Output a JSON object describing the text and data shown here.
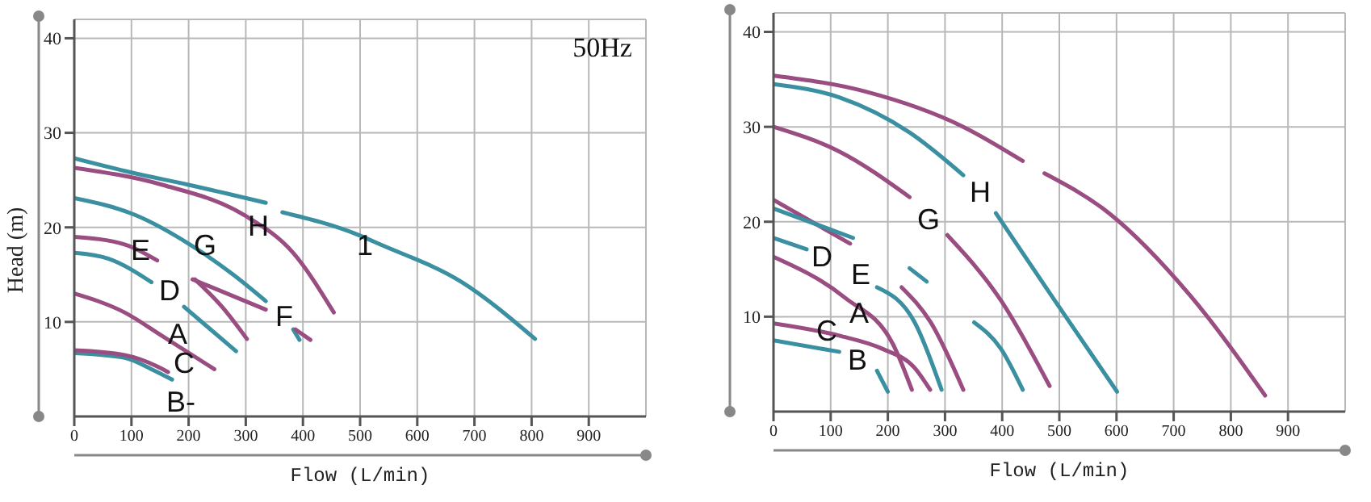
{
  "chart_data": [
    {
      "type": "line",
      "xlabel": "Flow (L/min)",
      "ylabel": "Head (m)",
      "xlim": [
        0,
        1000
      ],
      "ylim": [
        0,
        42
      ],
      "xticks": [
        0,
        100,
        200,
        300,
        400,
        500,
        600,
        700,
        800,
        900
      ],
      "yticks": [
        10,
        20,
        30,
        40
      ],
      "grid": true,
      "series": [
        {
          "color": "#3a8fa0",
          "x": [
            0,
            100,
            200,
            335,
            350,
            364,
            497,
            535,
            678,
            806
          ],
          "values": [
            27.3,
            25.8,
            24.5,
            22.6,
            null,
            21.6,
            19.2,
            18.2,
            14.2,
            8.2
          ]
        },
        {
          "color": "#9a4d80",
          "x": [
            0,
            154,
            297,
            383,
            454
          ],
          "values": [
            26.3,
            24.5,
            21.3,
            17.3,
            11.0
          ]
        },
        {
          "color": "#3a8fa0",
          "x": [
            0,
            107,
            202,
            278,
            335,
            360,
            383,
            394
          ],
          "values": [
            23.1,
            21.3,
            18.2,
            15.0,
            12.2,
            null,
            9.2,
            8.1
          ]
        },
        {
          "color": "#9a4d80",
          "x": [
            207,
            335,
            360,
            387,
            413
          ],
          "values": [
            14.5,
            11.3,
            null,
            9.2,
            8.1
          ]
        },
        {
          "color": "#9a4d80",
          "x": [
            0,
            88,
            145
          ],
          "values": [
            19.0,
            18.2,
            16.5
          ]
        },
        {
          "color": "#9a4d80",
          "x": [
            211,
            260,
            302
          ],
          "values": [
            14.5,
            11.5,
            8.2
          ]
        },
        {
          "color": "#3a8fa0",
          "x": [
            0,
            59,
            135,
            160,
            192,
            283
          ],
          "values": [
            17.3,
            16.7,
            14.2,
            null,
            11.6,
            6.9
          ]
        },
        {
          "color": "#9a4d80",
          "x": [
            0,
            88,
            154,
            245
          ],
          "values": [
            13.0,
            11.0,
            8.5,
            5.0
          ]
        },
        {
          "color": "#3a8fa0",
          "x": [
            0,
            88,
            135,
            171
          ],
          "values": [
            6.7,
            6.2,
            5.0,
            3.9
          ]
        },
        {
          "color": "#9a4d80",
          "x": [
            0,
            88,
            145,
            164
          ],
          "values": [
            7.0,
            6.5,
            5.3,
            4.7
          ]
        }
      ],
      "annotations": [
        "50Hz",
        "E",
        "G",
        "H",
        "D",
        "F",
        "A",
        "C",
        "B-",
        "1"
      ]
    },
    {
      "type": "line",
      "xlabel": "Flow (L/min)",
      "xlim": [
        0,
        1000
      ],
      "ylim": [
        0,
        42
      ],
      "xticks": [
        0,
        100,
        200,
        300,
        400,
        500,
        600,
        700,
        800,
        900
      ],
      "yticks": [
        10,
        20,
        30,
        40
      ],
      "grid": true,
      "series": [
        {
          "color": "#9a4d80",
          "x": [
            0,
            162,
            332,
            436,
            455,
            474,
            587,
            728,
            860
          ],
          "values": [
            35.4,
            33.7,
            30.0,
            26.4,
            null,
            25.1,
            20.9,
            12.3,
            1.7
          ]
        },
        {
          "color": "#3a8fa0",
          "x": [
            0,
            115,
            238,
            332,
            360,
            389,
            492,
            601
          ],
          "values": [
            34.5,
            33.1,
            29.4,
            24.9,
            null,
            20.9,
            11.7,
            2.1
          ]
        },
        {
          "color": "#9a4d80",
          "x": [
            0,
            115,
            238,
            270,
            304,
            398,
            483
          ],
          "values": [
            30.0,
            27.4,
            22.6,
            null,
            18.6,
            11.7,
            2.7
          ]
        },
        {
          "color": "#3a8fa0",
          "x": [
            238,
            268,
            300,
            351,
            398,
            436
          ],
          "values": [
            15.1,
            13.7,
            null,
            9.4,
            6.6,
            2.3
          ]
        },
        {
          "color": "#9a4d80",
          "x": [
            224,
            275,
            332
          ],
          "values": [
            13.1,
            9.4,
            2.3
          ]
        },
        {
          "color": "#3a8fa0",
          "x": [
            181,
            247,
            294
          ],
          "values": [
            13.1,
            9.4,
            2.3
          ]
        },
        {
          "color": "#9a4d80",
          "x": [
            0,
            134
          ],
          "values": [
            22.3,
            17.7
          ]
        },
        {
          "color": "#3a8fa0",
          "x": [
            0,
            139
          ],
          "values": [
            21.4,
            18.3
          ]
        },
        {
          "color": "#3a8fa0",
          "x": [
            0,
            58
          ],
          "values": [
            18.3,
            17.1
          ]
        },
        {
          "color": "#9a4d80",
          "x": [
            0,
            125,
            209,
            242
          ],
          "values": [
            16.3,
            12.0,
            7.1,
            2.3
          ]
        },
        {
          "color": "#9a4d80",
          "x": [
            0,
            115,
            191,
            247,
            274
          ],
          "values": [
            9.3,
            8.0,
            6.6,
            4.6,
            2.3
          ]
        },
        {
          "color": "#3a8fa0",
          "x": [
            0,
            115,
            150,
            181,
            200
          ],
          "values": [
            7.5,
            6.3,
            null,
            4.3,
            2.1
          ]
        }
      ],
      "annotations": [
        "H",
        "G",
        "D",
        "E",
        "A",
        "C",
        "B"
      ]
    }
  ]
}
